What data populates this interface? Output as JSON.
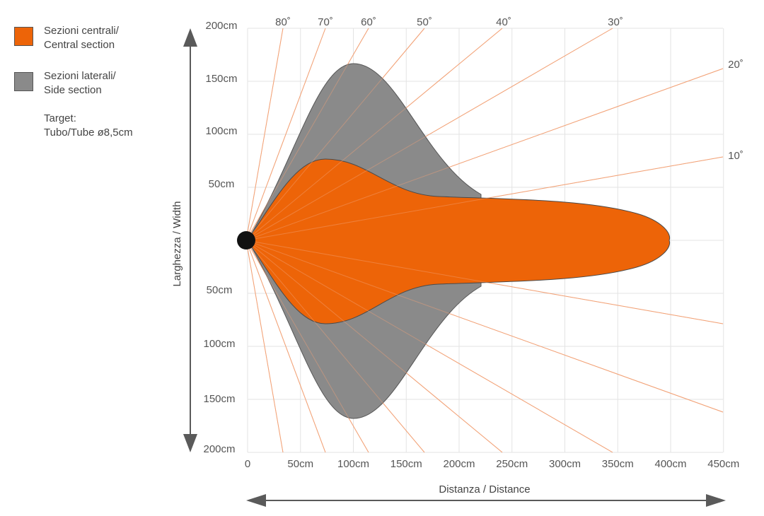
{
  "legend": {
    "central": {
      "line1": "Sezioni centrali/",
      "line2": "Central section",
      "color": "#ed6408"
    },
    "side": {
      "line1": "Sezioni laterali/",
      "line2": "Side section",
      "color": "#8a8a8a"
    },
    "target": {
      "line1": "Target:",
      "line2": "Tubo/Tube ø8,5cm"
    }
  },
  "axes": {
    "y_label": "Larghezza / Width",
    "x_label": "Distanza / Distance",
    "y_ticks_top": [
      "200cm",
      "150cm",
      "100cm",
      "50cm"
    ],
    "y_ticks_bottom": [
      "50cm",
      "100cm",
      "150cm",
      "200cm"
    ],
    "x_ticks": [
      "0",
      "50cm",
      "100cm",
      "150cm",
      "200cm",
      "250cm",
      "300cm",
      "350cm",
      "400cm",
      "450cm"
    ],
    "angle_labels": [
      "80˚",
      "70˚",
      "60˚",
      "50˚",
      "40˚",
      "30˚",
      "20˚",
      "10˚"
    ]
  },
  "colors": {
    "central": "#ed6408",
    "side": "#8a8a8a",
    "angle_lines": "#f2a277",
    "grid": "#e3e3e3",
    "axis_arrow": "#5a5a5a",
    "target": "#111111"
  }
}
